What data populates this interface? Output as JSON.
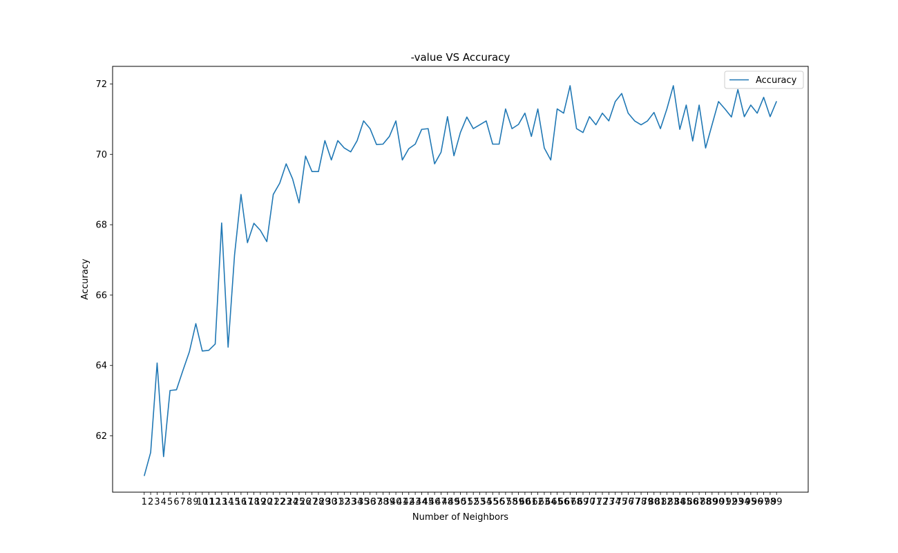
{
  "chart_data": {
    "type": "line",
    "title": "-value VS Accuracy",
    "xlabel": "Number of Neighbors",
    "ylabel": "Accuracy",
    "x": [
      1,
      2,
      3,
      4,
      5,
      6,
      7,
      8,
      9,
      10,
      11,
      12,
      13,
      14,
      15,
      16,
      17,
      18,
      19,
      20,
      21,
      22,
      23,
      24,
      25,
      26,
      27,
      28,
      29,
      30,
      31,
      32,
      33,
      34,
      35,
      36,
      37,
      38,
      39,
      40,
      41,
      42,
      43,
      44,
      45,
      46,
      47,
      48,
      49,
      50,
      51,
      52,
      53,
      54,
      55,
      56,
      57,
      58,
      59,
      60,
      61,
      62,
      63,
      64,
      65,
      66,
      67,
      68,
      69,
      70,
      71,
      72,
      73,
      74,
      75,
      76,
      77,
      78,
      79,
      80,
      81,
      82,
      83,
      84,
      85,
      86,
      87,
      88,
      89,
      90,
      91,
      92,
      93,
      94,
      95,
      96,
      97,
      98,
      99
    ],
    "x_tick_labels": [
      "1",
      "2",
      "3",
      "4",
      "5",
      "6",
      "7",
      "8",
      "9",
      "10",
      "11",
      "12",
      "13",
      "14",
      "15",
      "16",
      "17",
      "18",
      "19",
      "20",
      "21",
      "22",
      "23",
      "24",
      "25",
      "26",
      "27",
      "28",
      "29",
      "30",
      "31",
      "32",
      "33",
      "34",
      "35",
      "36",
      "37",
      "38",
      "39",
      "40",
      "41",
      "42",
      "43",
      "44",
      "45",
      "46",
      "47",
      "48",
      "49",
      "50",
      "51",
      "52",
      "53",
      "54",
      "55",
      "56",
      "57",
      "58",
      "59",
      "60",
      "61",
      "62",
      "63",
      "64",
      "65",
      "66",
      "67",
      "68",
      "69",
      "70",
      "71",
      "72",
      "73",
      "74",
      "75",
      "76",
      "77",
      "78",
      "79",
      "80",
      "81",
      "82",
      "83",
      "84",
      "85",
      "86",
      "87",
      "88",
      "89",
      "90",
      "91",
      "92",
      "93",
      "94",
      "95",
      "96",
      "97",
      "98",
      "99"
    ],
    "y_ticks": [
      62,
      64,
      66,
      68,
      70,
      72
    ],
    "xlim": [
      -3.9,
      103.9
    ],
    "ylim": [
      60.4,
      72.5
    ],
    "grid": false,
    "legend_position": "top-right",
    "series": [
      {
        "name": "Accuracy",
        "color": "#1f77b4",
        "values": [
          60.86,
          61.53,
          64.07,
          61.41,
          63.29,
          63.31,
          63.86,
          64.39,
          65.19,
          64.41,
          64.43,
          64.61,
          68.05,
          64.52,
          67.14,
          68.86,
          67.49,
          68.04,
          67.84,
          67.52,
          68.86,
          69.18,
          69.73,
          69.3,
          68.62,
          69.95,
          69.51,
          69.51,
          70.39,
          69.84,
          70.39,
          70.18,
          70.07,
          70.39,
          70.95,
          70.73,
          70.28,
          70.29,
          70.51,
          70.95,
          69.84,
          70.16,
          70.29,
          70.71,
          70.73,
          69.73,
          70.06,
          71.07,
          69.96,
          70.62,
          71.06,
          70.73,
          70.84,
          70.95,
          70.29,
          70.29,
          71.29,
          70.73,
          70.85,
          71.17,
          70.51,
          71.29,
          70.18,
          69.84,
          71.29,
          71.17,
          71.95,
          70.73,
          70.62,
          71.07,
          70.84,
          71.17,
          70.95,
          71.5,
          71.73,
          71.17,
          70.95,
          70.84,
          70.95,
          71.19,
          70.73,
          71.29,
          71.95,
          70.71,
          71.4,
          70.38,
          71.4,
          70.18,
          70.84,
          71.5,
          71.29,
          71.06,
          71.84,
          71.07,
          71.4,
          71.17,
          71.62,
          71.07,
          71.51
        ]
      }
    ]
  }
}
